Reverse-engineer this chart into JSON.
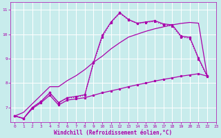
{
  "xlabel": "Windchill (Refroidissement éolien,°C)",
  "background_color": "#c8ecec",
  "grid_color": "#ffffff",
  "line_color": "#aa00aa",
  "xlim": [
    -0.5,
    23
  ],
  "ylim": [
    6.4,
    11.3
  ],
  "xticks": [
    0,
    1,
    2,
    3,
    4,
    5,
    6,
    7,
    8,
    9,
    10,
    11,
    12,
    13,
    14,
    15,
    16,
    17,
    18,
    19,
    20,
    21,
    22,
    23
  ],
  "yticks": [
    7,
    8,
    9,
    10,
    11
  ],
  "line1_x": [
    0,
    1,
    2,
    3,
    4,
    5,
    6,
    7,
    8,
    9,
    10,
    11,
    12,
    13,
    14,
    15,
    16,
    17,
    18,
    19,
    20,
    21,
    22
  ],
  "line1_y": [
    6.65,
    6.55,
    7.0,
    7.25,
    7.6,
    7.2,
    7.4,
    7.45,
    7.52,
    8.85,
    9.95,
    10.5,
    10.88,
    10.6,
    10.45,
    10.5,
    10.55,
    10.42,
    10.38,
    9.92,
    9.87,
    9.02,
    8.28
  ],
  "line2_x": [
    0,
    1,
    2,
    3,
    4,
    5,
    6,
    7,
    8,
    9,
    10,
    11,
    12,
    13,
    14,
    15,
    16,
    17,
    18,
    19,
    20,
    21,
    22
  ],
  "line2_y": [
    6.65,
    6.55,
    7.0,
    7.25,
    7.6,
    7.18,
    7.38,
    7.42,
    7.5,
    8.82,
    9.88,
    10.48,
    10.85,
    10.58,
    10.43,
    10.48,
    10.52,
    10.38,
    10.33,
    9.88,
    9.83,
    8.98,
    8.25
  ],
  "line3_x": [
    0,
    1,
    2,
    3,
    4,
    5,
    6,
    7,
    8,
    9,
    10,
    11,
    12,
    13,
    14,
    15,
    16,
    17,
    18,
    19,
    20,
    21,
    22
  ],
  "line3_y": [
    6.65,
    6.8,
    7.15,
    7.5,
    7.85,
    7.85,
    8.1,
    8.3,
    8.55,
    8.85,
    9.1,
    9.4,
    9.65,
    9.88,
    10.0,
    10.12,
    10.22,
    10.3,
    10.38,
    10.44,
    10.48,
    10.45,
    8.28
  ],
  "line4_x": [
    0,
    1,
    2,
    3,
    4,
    5,
    6,
    7,
    8,
    9,
    10,
    11,
    12,
    13,
    14,
    15,
    16,
    17,
    18,
    19,
    20,
    21,
    22
  ],
  "line4_y": [
    6.65,
    6.55,
    6.95,
    7.2,
    7.5,
    7.1,
    7.3,
    7.35,
    7.4,
    7.5,
    7.6,
    7.68,
    7.76,
    7.85,
    7.93,
    8.0,
    8.08,
    8.15,
    8.21,
    8.28,
    8.33,
    8.38,
    8.28
  ]
}
